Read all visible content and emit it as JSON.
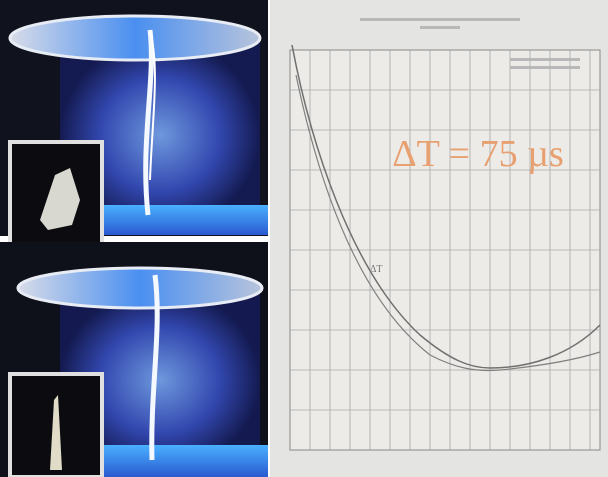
{
  "figure": {
    "annotation": "ΔT = 75 µs",
    "curve_label": "ΔT"
  }
}
